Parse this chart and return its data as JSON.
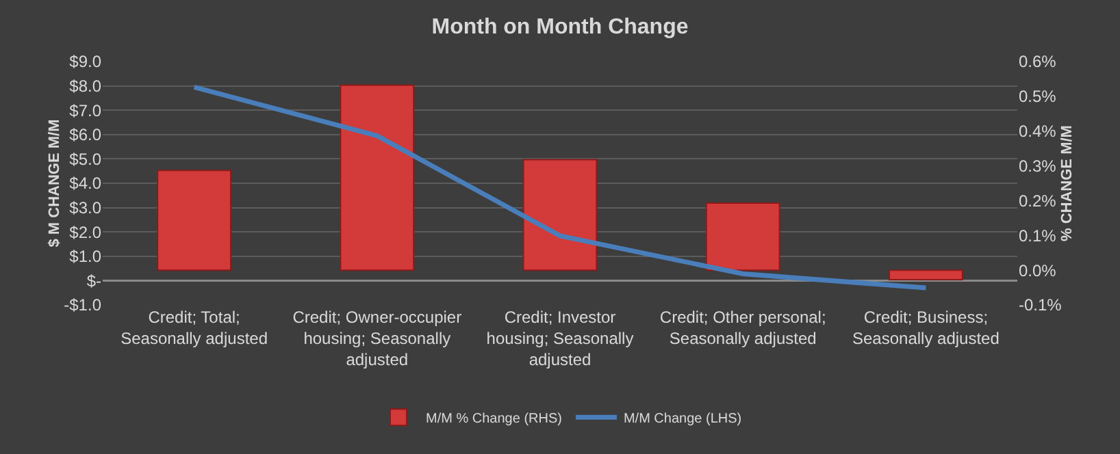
{
  "chart_data": {
    "type": "bar",
    "title": "Month on Month Change",
    "categories": [
      "Credit; Total; Seasonally adjusted",
      "Credit; Owner-occupier housing; Seasonally adjusted",
      "Credit; Investor housing; Seasonally adjusted",
      "Credit; Other personal; Seasonally adjusted",
      "Credit; Business; Seasonally adjusted"
    ],
    "series": [
      {
        "name": "M/M % Change (RHS)",
        "axis": "y2",
        "color": "#d33a3a",
        "values": [
          0.287,
          0.532,
          0.318,
          0.193,
          -0.027
        ]
      },
      {
        "name": "M/M Change (LHS)",
        "type": "line",
        "color": "#4a7ebb",
        "values": [
          7.95,
          5.95,
          1.84,
          0.28,
          -0.3
        ]
      }
    ],
    "ylabel": "$ M CHANGE M/M",
    "y2label": "% CHANGE M/M",
    "ylim": [
      -1,
      9
    ],
    "yticks": [
      {
        "value": -1,
        "label": "-$1.0"
      },
      {
        "value": 0,
        "label": "$-"
      },
      {
        "value": 1,
        "label": "$1.0"
      },
      {
        "value": 2,
        "label": "$2.0"
      },
      {
        "value": 3,
        "label": "$3.0"
      },
      {
        "value": 4,
        "label": "$4.0"
      },
      {
        "value": 5,
        "label": "$5.0"
      },
      {
        "value": 6,
        "label": "$6.0"
      },
      {
        "value": 7,
        "label": "$7.0"
      },
      {
        "value": 8,
        "label": "$8.0"
      },
      {
        "value": 9,
        "label": "$9.0"
      }
    ],
    "y2lim": [
      -0.1,
      0.6
    ],
    "y2ticks": [
      {
        "value": -0.1,
        "label": "-0.1%"
      },
      {
        "value": 0,
        "label": "0.0%"
      },
      {
        "value": 0.1,
        "label": "0.1%"
      },
      {
        "value": 0.2,
        "label": "0.2%"
      },
      {
        "value": 0.3,
        "label": "0.3%"
      },
      {
        "value": 0.4,
        "label": "0.4%"
      },
      {
        "value": 0.5,
        "label": "0.5%"
      },
      {
        "value": 0.6,
        "label": "0.6%"
      }
    ],
    "grid": "y",
    "legend": "bottom",
    "marker": "none",
    "line_style": "solid"
  }
}
